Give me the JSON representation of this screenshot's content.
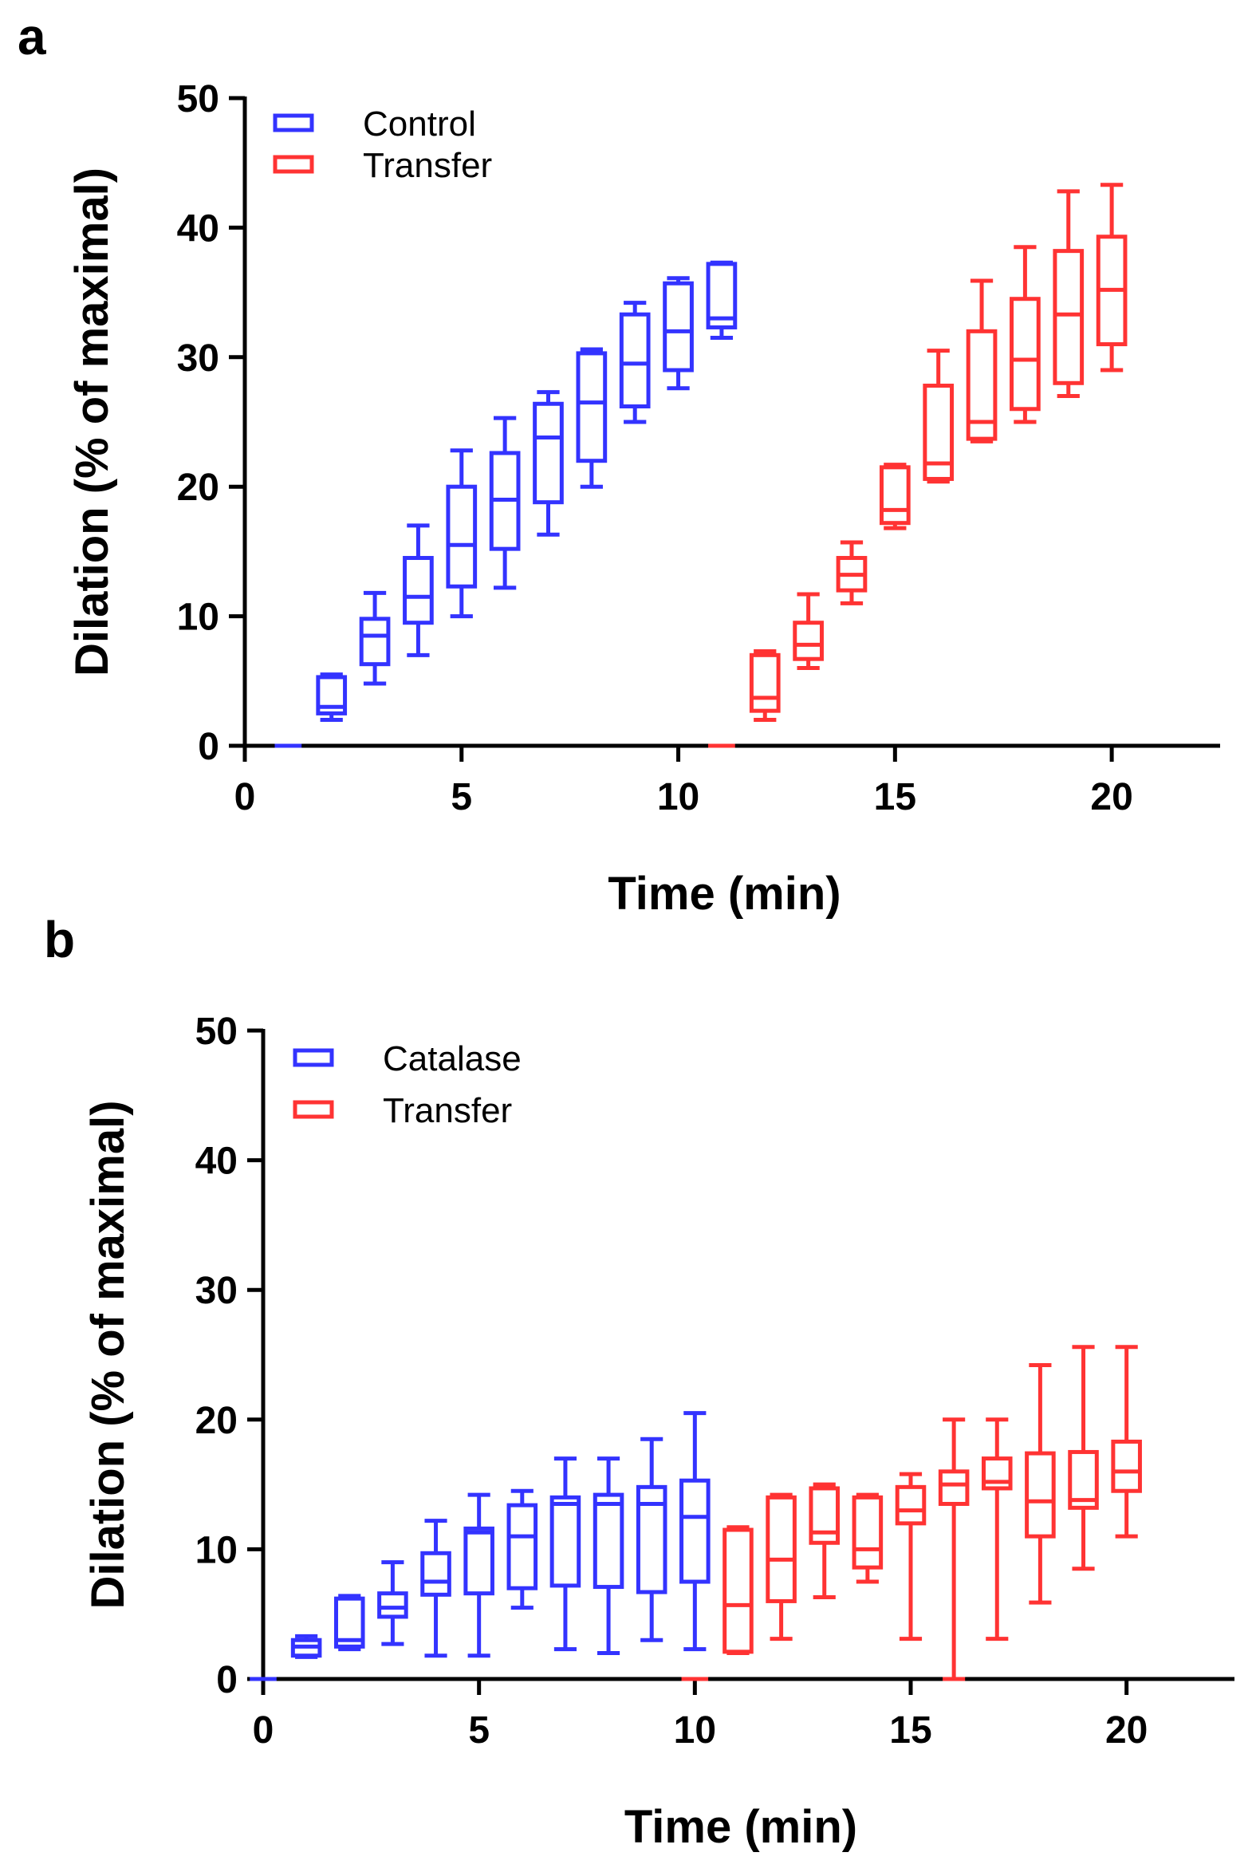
{
  "colors": {
    "blue": "#3333ff",
    "red": "#ff3333",
    "axis": "#000000"
  },
  "chart_data": [
    {
      "panel_label": "a",
      "type": "boxplot",
      "xlabel": "Time (min)",
      "ylabel": "Dilation (% of maximal)",
      "xlim": [
        0,
        22.5
      ],
      "ylim": [
        0,
        50
      ],
      "xticks": [
        "0",
        "5",
        "10",
        "15",
        "20"
      ],
      "yticks": [
        "0",
        "10",
        "20",
        "30",
        "40",
        "50"
      ],
      "legend_position": "top-left",
      "series": [
        {
          "name": "Control",
          "color": "blue",
          "boxes": [
            {
              "x": 1,
              "min": 0,
              "q1": 0,
              "median": 0,
              "q3": 0,
              "max": 0
            },
            {
              "x": 2,
              "min": 2,
              "q1": 2.5,
              "median": 3,
              "q3": 5.3,
              "max": 5.5
            },
            {
              "x": 3,
              "min": 4.8,
              "q1": 6.3,
              "median": 8.5,
              "q3": 9.8,
              "max": 11.8
            },
            {
              "x": 4,
              "min": 7,
              "q1": 9.5,
              "median": 11.5,
              "q3": 14.5,
              "max": 17
            },
            {
              "x": 5,
              "min": 10,
              "q1": 12.3,
              "median": 15.5,
              "q3": 20,
              "max": 22.8
            },
            {
              "x": 6,
              "min": 12.2,
              "q1": 15.2,
              "median": 19,
              "q3": 22.6,
              "max": 25.3
            },
            {
              "x": 7,
              "min": 16.3,
              "q1": 18.8,
              "median": 23.8,
              "q3": 26.4,
              "max": 27.3
            },
            {
              "x": 8,
              "min": 20,
              "q1": 22,
              "median": 26.5,
              "q3": 30.3,
              "max": 30.6
            },
            {
              "x": 9,
              "min": 25,
              "q1": 26.2,
              "median": 29.5,
              "q3": 33.3,
              "max": 34.2
            },
            {
              "x": 10,
              "min": 27.6,
              "q1": 29,
              "median": 32,
              "q3": 35.7,
              "max": 36.1
            },
            {
              "x": 11,
              "min": 31.5,
              "q1": 32.3,
              "median": 33,
              "q3": 37.2,
              "max": 37.3
            }
          ]
        },
        {
          "name": "Transfer",
          "color": "red",
          "boxes": [
            {
              "x": 11,
              "min": 0,
              "q1": 0,
              "median": 0,
              "q3": 0,
              "max": 0
            },
            {
              "x": 12,
              "min": 2,
              "q1": 2.7,
              "median": 3.7,
              "q3": 7,
              "max": 7.3
            },
            {
              "x": 13,
              "min": 6,
              "q1": 6.7,
              "median": 7.8,
              "q3": 9.5,
              "max": 11.7
            },
            {
              "x": 14,
              "min": 11,
              "q1": 12,
              "median": 13.2,
              "q3": 14.5,
              "max": 15.7
            },
            {
              "x": 15,
              "min": 16.8,
              "q1": 17.2,
              "median": 18.2,
              "q3": 21.5,
              "max": 21.7
            },
            {
              "x": 16,
              "min": 20.4,
              "q1": 20.6,
              "median": 21.8,
              "q3": 27.8,
              "max": 30.5
            },
            {
              "x": 17,
              "min": 23.5,
              "q1": 23.7,
              "median": 25,
              "q3": 32,
              "max": 35.9
            },
            {
              "x": 18,
              "min": 25,
              "q1": 26,
              "median": 29.8,
              "q3": 34.5,
              "max": 38.5
            },
            {
              "x": 19,
              "min": 27,
              "q1": 28,
              "median": 33.3,
              "q3": 38.2,
              "max": 42.8
            },
            {
              "x": 20,
              "min": 29,
              "q1": 31,
              "median": 35.2,
              "q3": 39.3,
              "max": 43.3
            }
          ]
        }
      ]
    },
    {
      "panel_label": "b",
      "type": "boxplot",
      "xlabel": "Time (min)",
      "ylabel": "Dilation (% of maximal)",
      "xlim": [
        0,
        22.5
      ],
      "ylim": [
        0,
        50
      ],
      "xticks": [
        "0",
        "5",
        "10",
        "15",
        "20"
      ],
      "yticks": [
        "0",
        "10",
        "20",
        "30",
        "40",
        "50"
      ],
      "legend_position": "top-left",
      "series": [
        {
          "name": "Catalase",
          "color": "blue",
          "boxes": [
            {
              "x": 0,
              "min": 0,
              "q1": 0,
              "median": 0,
              "q3": 0,
              "max": 0
            },
            {
              "x": 1,
              "min": 1.7,
              "q1": 1.8,
              "median": 2.5,
              "q3": 3,
              "max": 3.3
            },
            {
              "x": 2,
              "min": 2.3,
              "q1": 2.5,
              "median": 3,
              "q3": 6.2,
              "max": 6.4
            },
            {
              "x": 3,
              "min": 2.7,
              "q1": 4.8,
              "median": 5.5,
              "q3": 6.6,
              "max": 9
            },
            {
              "x": 4,
              "min": 1.8,
              "q1": 6.5,
              "median": 7.5,
              "q3": 9.7,
              "max": 12.2
            },
            {
              "x": 5,
              "min": 1.8,
              "q1": 6.6,
              "median": 11.3,
              "q3": 11.6,
              "max": 14.2
            },
            {
              "x": 6,
              "min": 5.5,
              "q1": 7,
              "median": 11,
              "q3": 13.4,
              "max": 14.5
            },
            {
              "x": 7,
              "min": 2.3,
              "q1": 7.2,
              "median": 13.5,
              "q3": 14,
              "max": 17
            },
            {
              "x": 8,
              "min": 2,
              "q1": 7.1,
              "median": 13.5,
              "q3": 14.2,
              "max": 17
            },
            {
              "x": 9,
              "min": 3,
              "q1": 6.7,
              "median": 13.5,
              "q3": 14.8,
              "max": 18.5
            },
            {
              "x": 10,
              "min": 2.3,
              "q1": 7.5,
              "median": 12.5,
              "q3": 15.3,
              "max": 20.5
            }
          ]
        },
        {
          "name": "Transfer",
          "color": "red",
          "boxes": [
            {
              "x": 10,
              "min": 0,
              "q1": 0,
              "median": 0,
              "q3": 0,
              "max": 0
            },
            {
              "x": 11,
              "min": 2,
              "q1": 2.1,
              "median": 5.7,
              "q3": 11.5,
              "max": 11.7
            },
            {
              "x": 12,
              "min": 3.1,
              "q1": 6,
              "median": 9.2,
              "q3": 14,
              "max": 14.2
            },
            {
              "x": 13,
              "min": 6.3,
              "q1": 10.5,
              "median": 11.3,
              "q3": 14.7,
              "max": 15
            },
            {
              "x": 14,
              "min": 7.5,
              "q1": 8.6,
              "median": 10,
              "q3": 14,
              "max": 14.2
            },
            {
              "x": 15,
              "min": 3.1,
              "q1": 12,
              "median": 13,
              "q3": 14.8,
              "max": 15.8
            },
            {
              "x": 16,
              "min": 0,
              "q1": 13.5,
              "median": 15,
              "q3": 16,
              "max": 20
            },
            {
              "x": 17,
              "min": 3.1,
              "q1": 14.7,
              "median": 15.2,
              "q3": 17,
              "max": 20
            },
            {
              "x": 18,
              "min": 5.9,
              "q1": 11,
              "median": 13.7,
              "q3": 17.4,
              "max": 24.2
            },
            {
              "x": 19,
              "min": 8.5,
              "q1": 13.2,
              "median": 13.8,
              "q3": 17.5,
              "max": 25.6
            },
            {
              "x": 20,
              "min": 11,
              "q1": 14.5,
              "median": 16,
              "q3": 18.3,
              "max": 25.6
            }
          ]
        }
      ]
    }
  ]
}
